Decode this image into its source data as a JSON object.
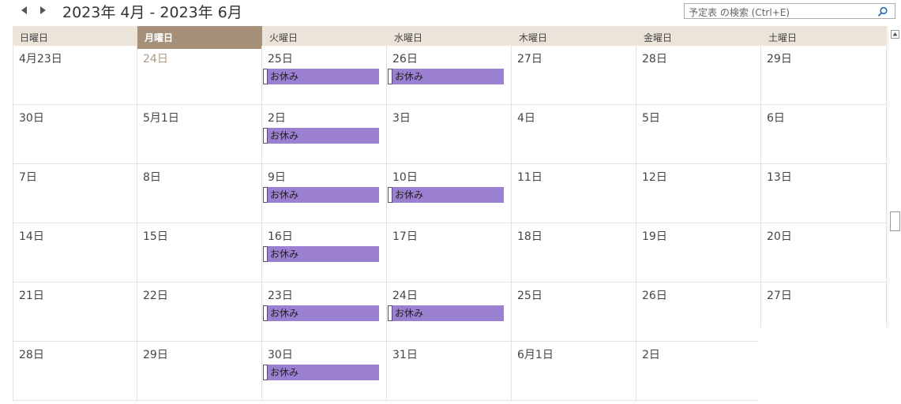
{
  "header": {
    "range_title": "2023年 4月 - 2023年 6月",
    "prev_icon": "triangle-left-icon",
    "next_icon": "triangle-right-icon"
  },
  "search": {
    "placeholder": "予定表 の検索 (Ctrl+E)",
    "icon": "search-icon"
  },
  "weekdays": [
    "日曜日",
    "月曜日",
    "火曜日",
    "水曜日",
    "木曜日",
    "金曜日",
    "土曜日"
  ],
  "today_weekday_index": 1,
  "weeks": [
    [
      {
        "label": "4月23日",
        "events": []
      },
      {
        "label": "24日",
        "today": true,
        "events": []
      },
      {
        "label": "25日",
        "events": [
          "お休み"
        ]
      },
      {
        "label": "26日",
        "events": [
          "お休み"
        ]
      },
      {
        "label": "27日",
        "events": []
      },
      {
        "label": "28日",
        "events": []
      },
      {
        "label": "29日",
        "events": []
      }
    ],
    [
      {
        "label": "30日",
        "events": []
      },
      {
        "label": "5月1日",
        "events": []
      },
      {
        "label": "2日",
        "events": [
          "お休み"
        ]
      },
      {
        "label": "3日",
        "events": []
      },
      {
        "label": "4日",
        "events": []
      },
      {
        "label": "5日",
        "events": []
      },
      {
        "label": "6日",
        "events": []
      }
    ],
    [
      {
        "label": "7日",
        "events": []
      },
      {
        "label": "8日",
        "events": []
      },
      {
        "label": "9日",
        "events": [
          "お休み"
        ]
      },
      {
        "label": "10日",
        "events": [
          "お休み"
        ]
      },
      {
        "label": "11日",
        "events": []
      },
      {
        "label": "12日",
        "events": []
      },
      {
        "label": "13日",
        "events": []
      }
    ],
    [
      {
        "label": "14日",
        "events": []
      },
      {
        "label": "15日",
        "events": []
      },
      {
        "label": "16日",
        "events": [
          "お休み"
        ]
      },
      {
        "label": "17日",
        "events": []
      },
      {
        "label": "18日",
        "events": []
      },
      {
        "label": "19日",
        "events": []
      },
      {
        "label": "20日",
        "events": []
      }
    ],
    [
      {
        "label": "21日",
        "events": []
      },
      {
        "label": "22日",
        "events": []
      },
      {
        "label": "23日",
        "events": [
          "お休み"
        ]
      },
      {
        "label": "24日",
        "events": [
          "お休み"
        ]
      },
      {
        "label": "25日",
        "events": []
      },
      {
        "label": "26日",
        "events": []
      },
      {
        "label": "27日",
        "events": []
      }
    ],
    [
      {
        "label": "28日",
        "events": []
      },
      {
        "label": "29日",
        "events": []
      },
      {
        "label": "30日",
        "events": [
          "お休み"
        ]
      },
      {
        "label": "31日",
        "events": []
      },
      {
        "label": "6月1日",
        "events": []
      },
      {
        "label": "2日",
        "events": []
      },
      {
        "label": "",
        "events": []
      }
    ]
  ],
  "colors": {
    "weekday_header_bg": "#ece4d9",
    "today_header_bg": "#a6907a",
    "event_bg": "#9b7fd1",
    "today_date_text": "#b09a82"
  }
}
